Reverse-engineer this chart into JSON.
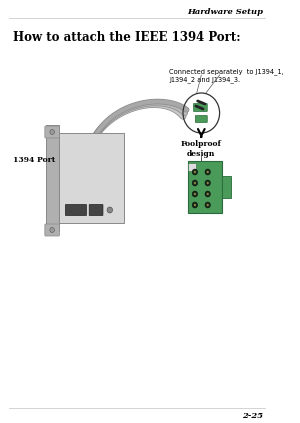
{
  "page_title": "Hardware Setup",
  "section_title": "How to attach the IEEE 1394 Port:",
  "label_1394_port": "1394 Port",
  "label_connected": "Connected separately  to J1394_1,\nJ1394_2 and J1394_3.",
  "label_foolproof": "Foolproof\ndesign",
  "page_number": "2-25",
  "bg_color": "#ffffff",
  "text_color": "#000000",
  "green_color": "#4a9a5a",
  "green_dark": "#2a6a3a",
  "gray_light": "#d8d8d8",
  "gray_mid": "#b0b0b0",
  "gray_dark": "#888888",
  "header_fontsize": 6.0,
  "title_fontsize": 8.5,
  "body_fontsize": 5.5,
  "annot_fontsize": 4.8,
  "pagenum_fontsize": 6.0
}
